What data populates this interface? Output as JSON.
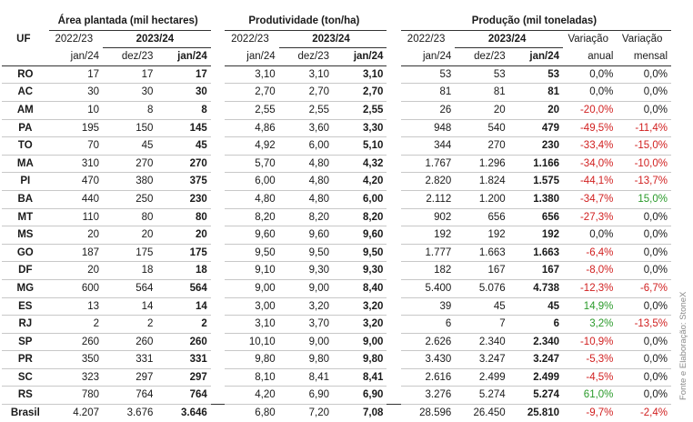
{
  "headers": {
    "uf": "UF",
    "area": "Área plantada (mil hectares)",
    "prod": "Produtividade (ton/ha)",
    "producao": "Produção (mil toneladas)",
    "y1": "2022/23",
    "y2": "2023/24",
    "m_jan24": "jan/24",
    "m_dez23": "dez/23",
    "var_anual_1": "Variação",
    "var_anual_2": "anual",
    "var_mensal_1": "Variação",
    "var_mensal_2": "mensal"
  },
  "rows": [
    {
      "uf": "RO",
      "a1": "17",
      "a2": "17",
      "a3": "17",
      "p1": "3,10",
      "p2": "3,10",
      "p3": "3,10",
      "q1": "53",
      "q2": "53",
      "q3": "53",
      "va": "0,0%",
      "vm": "0,0%"
    },
    {
      "uf": "AC",
      "a1": "30",
      "a2": "30",
      "a3": "30",
      "p1": "2,70",
      "p2": "2,70",
      "p3": "2,70",
      "q1": "81",
      "q2": "81",
      "q3": "81",
      "va": "0,0%",
      "vm": "0,0%"
    },
    {
      "uf": "AM",
      "a1": "10",
      "a2": "8",
      "a3": "8",
      "p1": "2,55",
      "p2": "2,55",
      "p3": "2,55",
      "q1": "26",
      "q2": "20",
      "q3": "20",
      "va": "-20,0%",
      "vm": "0,0%"
    },
    {
      "uf": "PA",
      "a1": "195",
      "a2": "150",
      "a3": "145",
      "p1": "4,86",
      "p2": "3,60",
      "p3": "3,30",
      "q1": "948",
      "q2": "540",
      "q3": "479",
      "va": "-49,5%",
      "vm": "-11,4%"
    },
    {
      "uf": "TO",
      "a1": "70",
      "a2": "45",
      "a3": "45",
      "p1": "4,92",
      "p2": "6,00",
      "p3": "5,10",
      "q1": "344",
      "q2": "270",
      "q3": "230",
      "va": "-33,4%",
      "vm": "-15,0%"
    },
    {
      "uf": "MA",
      "a1": "310",
      "a2": "270",
      "a3": "270",
      "p1": "5,70",
      "p2": "4,80",
      "p3": "4,32",
      "q1": "1.767",
      "q2": "1.296",
      "q3": "1.166",
      "va": "-34,0%",
      "vm": "-10,0%"
    },
    {
      "uf": "PI",
      "a1": "470",
      "a2": "380",
      "a3": "375",
      "p1": "6,00",
      "p2": "4,80",
      "p3": "4,20",
      "q1": "2.820",
      "q2": "1.824",
      "q3": "1.575",
      "va": "-44,1%",
      "vm": "-13,7%"
    },
    {
      "uf": "BA",
      "a1": "440",
      "a2": "250",
      "a3": "230",
      "p1": "4,80",
      "p2": "4,80",
      "p3": "6,00",
      "q1": "2.112",
      "q2": "1.200",
      "q3": "1.380",
      "va": "-34,7%",
      "vm": "15,0%"
    },
    {
      "uf": "MT",
      "a1": "110",
      "a2": "80",
      "a3": "80",
      "p1": "8,20",
      "p2": "8,20",
      "p3": "8,20",
      "q1": "902",
      "q2": "656",
      "q3": "656",
      "va": "-27,3%",
      "vm": "0,0%"
    },
    {
      "uf": "MS",
      "a1": "20",
      "a2": "20",
      "a3": "20",
      "p1": "9,60",
      "p2": "9,60",
      "p3": "9,60",
      "q1": "192",
      "q2": "192",
      "q3": "192",
      "va": "0,0%",
      "vm": "0,0%"
    },
    {
      "uf": "GO",
      "a1": "187",
      "a2": "175",
      "a3": "175",
      "p1": "9,50",
      "p2": "9,50",
      "p3": "9,50",
      "q1": "1.777",
      "q2": "1.663",
      "q3": "1.663",
      "va": "-6,4%",
      "vm": "0,0%"
    },
    {
      "uf": "DF",
      "a1": "20",
      "a2": "18",
      "a3": "18",
      "p1": "9,10",
      "p2": "9,30",
      "p3": "9,30",
      "q1": "182",
      "q2": "167",
      "q3": "167",
      "va": "-8,0%",
      "vm": "0,0%"
    },
    {
      "uf": "MG",
      "a1": "600",
      "a2": "564",
      "a3": "564",
      "p1": "9,00",
      "p2": "9,00",
      "p3": "8,40",
      "q1": "5.400",
      "q2": "5.076",
      "q3": "4.738",
      "va": "-12,3%",
      "vm": "-6,7%"
    },
    {
      "uf": "ES",
      "a1": "13",
      "a2": "14",
      "a3": "14",
      "p1": "3,00",
      "p2": "3,20",
      "p3": "3,20",
      "q1": "39",
      "q2": "45",
      "q3": "45",
      "va": "14,9%",
      "vm": "0,0%"
    },
    {
      "uf": "RJ",
      "a1": "2",
      "a2": "2",
      "a3": "2",
      "p1": "3,10",
      "p2": "3,70",
      "p3": "3,20",
      "q1": "6",
      "q2": "7",
      "q3": "6",
      "va": "3,2%",
      "vm": "-13,5%"
    },
    {
      "uf": "SP",
      "a1": "260",
      "a2": "260",
      "a3": "260",
      "p1": "10,10",
      "p2": "9,00",
      "p3": "9,00",
      "q1": "2.626",
      "q2": "2.340",
      "q3": "2.340",
      "va": "-10,9%",
      "vm": "0,0%"
    },
    {
      "uf": "PR",
      "a1": "350",
      "a2": "331",
      "a3": "331",
      "p1": "9,80",
      "p2": "9,80",
      "p3": "9,80",
      "q1": "3.430",
      "q2": "3.247",
      "q3": "3.247",
      "va": "-5,3%",
      "vm": "0,0%"
    },
    {
      "uf": "SC",
      "a1": "323",
      "a2": "297",
      "a3": "297",
      "p1": "8,10",
      "p2": "8,41",
      "p3": "8,41",
      "q1": "2.616",
      "q2": "2.499",
      "q3": "2.499",
      "va": "-4,5%",
      "vm": "0,0%"
    },
    {
      "uf": "RS",
      "a1": "780",
      "a2": "764",
      "a3": "764",
      "p1": "4,20",
      "p2": "6,90",
      "p3": "6,90",
      "q1": "3.276",
      "q2": "5.274",
      "q3": "5.274",
      "va": "61,0%",
      "vm": "0,0%"
    }
  ],
  "total": {
    "uf": "Brasil",
    "a1": "4.207",
    "a2": "3.676",
    "a3": "3.646",
    "p1": "6,80",
    "p2": "7,20",
    "p3": "7,08",
    "q1": "28.596",
    "q2": "26.450",
    "q3": "25.810",
    "va": "-9,7%",
    "vm": "-2,4%"
  },
  "source": "Fonte e Elaboração: StoneX",
  "colors": {
    "negative": "#d11f1f",
    "positive": "#2a9a2a"
  }
}
